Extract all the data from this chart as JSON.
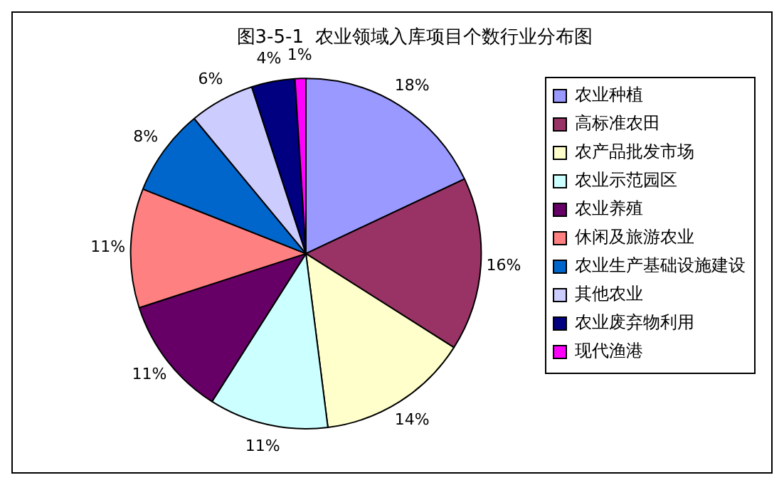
{
  "chart_data": {
    "type": "pie",
    "title": "图3-5-1  农业领域入库项目个数行业分布图",
    "categories": [
      "农业种植",
      "高标准农田",
      "农产品批发市场",
      "农业示范园区",
      "农业养殖",
      "休闲及旅游农业",
      "农业生产基础设施建设",
      "其他农业",
      "农业废弃物利用",
      "现代渔港"
    ],
    "values": [
      18,
      16,
      14,
      11,
      11,
      11,
      8,
      6,
      4,
      1
    ],
    "value_labels": [
      "18%",
      "16%",
      "14%",
      "11%",
      "11%",
      "11%",
      "8%",
      "6%",
      "4%",
      "1%"
    ],
    "colors": [
      "#9999ff",
      "#993366",
      "#ffffcc",
      "#ccffff",
      "#660066",
      "#ff8080",
      "#0066cc",
      "#ccccff",
      "#000080",
      "#ff00ff"
    ],
    "legend": "right"
  }
}
